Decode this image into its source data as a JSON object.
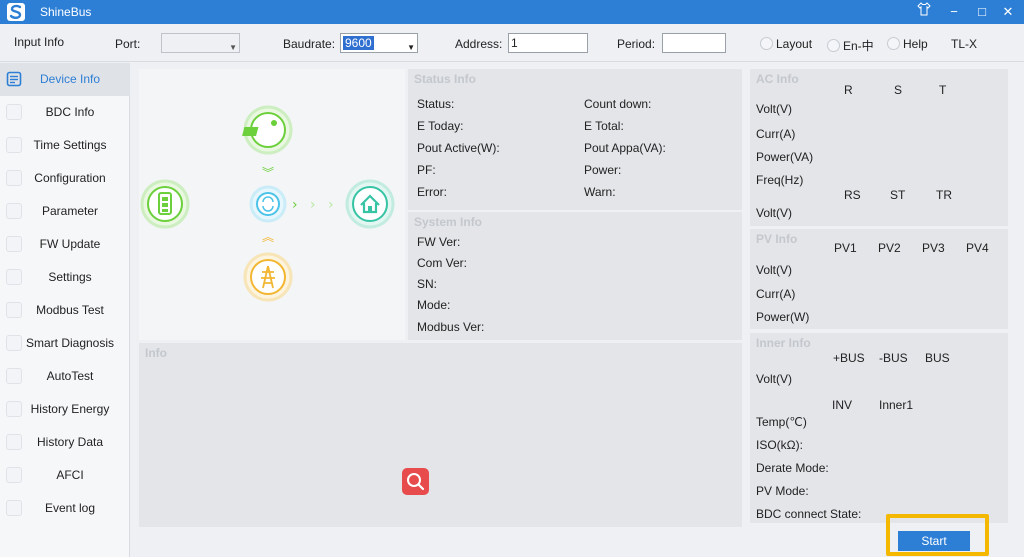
{
  "titlebar": {
    "title": "ShineBus",
    "skin_icon": "shirt-icon",
    "min_glyph": "−",
    "max_glyph": "□",
    "close_glyph": "✕"
  },
  "toolbar": {
    "input_info": "Input Info",
    "port_label": "Port:",
    "port_value": "",
    "baudrate_label": "Baudrate:",
    "baudrate_value": "9600",
    "address_label": "Address:",
    "address_value": "1",
    "period_label": "Period:",
    "period_value": "",
    "layout": "Layout",
    "language": "En-中",
    "help": "Help",
    "model": "TL-X"
  },
  "sidebar": {
    "items": [
      {
        "label": "Device Info",
        "active": true
      },
      {
        "label": "BDC Info"
      },
      {
        "label": "Time Settings"
      },
      {
        "label": "Configuration"
      },
      {
        "label": "Parameter"
      },
      {
        "label": "FW Update"
      },
      {
        "label": "Settings"
      },
      {
        "label": "Modbus Test"
      },
      {
        "label": "Smart Diagnosis"
      },
      {
        "label": "AutoTest"
      },
      {
        "label": "History Energy"
      },
      {
        "label": "History Data"
      },
      {
        "label": "AFCI"
      },
      {
        "label": "Event log"
      }
    ]
  },
  "status_info": {
    "title": "Status Info",
    "status": "Status:",
    "count_down": "Count down:",
    "e_today": "E Today:",
    "e_total": "E Total:",
    "pout_active": "Pout Active(W):",
    "pout_appa": "Pout Appa(VA):",
    "pf": "PF:",
    "power": "Power:",
    "error": "Error:",
    "warn": "Warn:"
  },
  "system_info": {
    "title": "System Info",
    "fw_ver": "FW Ver:",
    "com_ver": "Com Ver:",
    "sn": "SN:",
    "mode": "Mode:",
    "modbus_ver": "Modbus Ver:"
  },
  "info": {
    "title": "Info"
  },
  "ac_info": {
    "title": "AC Info",
    "r": "R",
    "s": "S",
    "t": "T",
    "volt": "Volt(V)",
    "curr": "Curr(A)",
    "power": "Power(VA)",
    "freq": "Freq(Hz)",
    "rs": "RS",
    "st": "ST",
    "tr": "TR",
    "volt2": "Volt(V)"
  },
  "pv_info": {
    "title": "PV Info",
    "pv1": "PV1",
    "pv2": "PV2",
    "pv3": "PV3",
    "pv4": "PV4",
    "volt": "Volt(V)",
    "curr": "Curr(A)",
    "power": "Power(W)"
  },
  "inner_info": {
    "title": "Inner Info",
    "pbus": "+BUS",
    "nbus": "-BUS",
    "bus": "BUS",
    "volt": "Volt(V)",
    "inv": "INV",
    "inner1": "Inner1",
    "temp": "Temp(℃)",
    "iso": "ISO(kΩ):",
    "derate": "Derate Mode:",
    "pv_mode": "PV Mode:",
    "bdc_state": "BDC connect State:"
  },
  "start_label": "Start",
  "colors": {
    "accent": "#2d7fd6",
    "highlight": "#f5b800",
    "solar": "#6ccf3c",
    "grid": "#f2b632",
    "home": "#37c4a4"
  }
}
